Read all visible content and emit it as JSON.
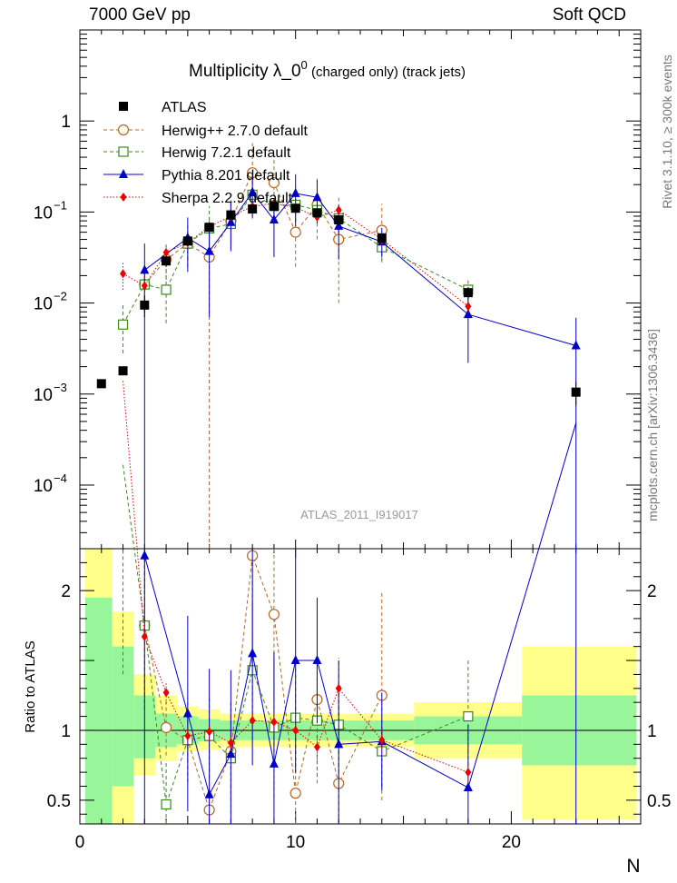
{
  "header": {
    "left": "7000 GeV pp",
    "right": "Soft QCD"
  },
  "side_labels": {
    "rivet": "Rivet 3.1.10, ≥ 300k events",
    "mcplots": "mcplots.cern.ch [arXiv:1306.3436]"
  },
  "chart_data": {
    "type": "scatter",
    "title_main": "Multiplicity  λ_0",
    "title_sup": "0",
    "title_suffix": " (charged only) (track jets)",
    "analysis_label": "ATLAS_2011_I919017",
    "xlabel": "N",
    "ylabel_ratio": "Ratio to ATLAS",
    "xlim": [
      0,
      26
    ],
    "ylim": [
      2e-05,
      10
    ],
    "y_scale": "log",
    "ratio_ylim": [
      0.33,
      2.3
    ],
    "x_ticks": [
      "0",
      "10",
      "20"
    ],
    "y_ticks_main": [
      {
        "v": 1,
        "label": "1"
      },
      {
        "v": 0.1,
        "label": "10",
        "sup": "−1"
      },
      {
        "v": 0.01,
        "label": "10",
        "sup": "−2"
      },
      {
        "v": 0.001,
        "label": "10",
        "sup": "−3"
      },
      {
        "v": 0.0001,
        "label": "10",
        "sup": "−4"
      }
    ],
    "y_ticks_ratio": [
      "0.5",
      "1",
      "2"
    ],
    "legend_position": "top-left",
    "data_bands": [
      {
        "x0": 0.25,
        "x1": 1.5,
        "g": [
          0.3,
          1.95
        ],
        "y": [
          0.2,
          2.3
        ]
      },
      {
        "x0": 1.5,
        "x1": 2.5,
        "g": [
          0.6,
          1.6
        ],
        "y": [
          0.3,
          1.85
        ]
      },
      {
        "x0": 2.5,
        "x1": 3.5,
        "g": [
          0.8,
          1.25
        ],
        "y": [
          0.68,
          1.4
        ]
      },
      {
        "x0": 3.5,
        "x1": 4.5,
        "g": [
          0.88,
          1.12
        ],
        "y": [
          0.78,
          1.25
        ]
      },
      {
        "x0": 4.5,
        "x1": 5.5,
        "g": [
          0.9,
          1.1
        ],
        "y": [
          0.85,
          1.17
        ]
      },
      {
        "x0": 5.5,
        "x1": 6.5,
        "g": [
          0.92,
          1.08
        ],
        "y": [
          0.86,
          1.15
        ]
      },
      {
        "x0": 6.5,
        "x1": 15.5,
        "g": [
          0.93,
          1.07
        ],
        "y": [
          0.88,
          1.12
        ]
      },
      {
        "x0": 15.5,
        "x1": 20.5,
        "g": [
          0.9,
          1.1
        ],
        "y": [
          0.8,
          1.2
        ]
      },
      {
        "x0": 20.5,
        "x1": 25.8,
        "g": [
          0.75,
          1.25
        ],
        "y": [
          0.36,
          1.6
        ]
      }
    ],
    "series": [
      {
        "name": "ATLAS",
        "color": "#000000",
        "marker": "square-filled",
        "x": [
          1,
          2,
          3,
          4,
          5,
          6,
          7,
          8,
          9,
          10,
          11,
          12,
          14,
          18,
          23
        ],
        "y": [
          0.0013,
          0.0018,
          0.0095,
          0.029,
          0.048,
          0.068,
          0.093,
          0.108,
          0.115,
          0.11,
          0.098,
          0.082,
          0.052,
          0.013,
          0.00105
        ]
      },
      {
        "name": "Herwig++ 2.7.0 default",
        "color": "#b8651f",
        "marker": "circle-open",
        "line": "dashed",
        "x": [
          3,
          4,
          5,
          6,
          7,
          8,
          9,
          10,
          11,
          12,
          14
        ],
        "y": [
          0.016,
          0.03,
          0.045,
          0.032,
          0.08,
          0.27,
          0.21,
          0.06,
          0.12,
          0.05,
          0.063
        ],
        "err_lo": [
          0.006,
          0.012,
          0.02,
          0.032,
          0.04,
          0.18,
          0.13,
          0.035,
          0.07,
          0.04,
          0.035
        ],
        "err_hi": [
          0.01,
          0.015,
          0.03,
          0.05,
          0.06,
          0.3,
          0.2,
          0.08,
          0.12,
          0.1,
          0.06
        ],
        "ratio": [
          1.75,
          1.02,
          0.93,
          0.43,
          0.85,
          2.25,
          1.83,
          0.55,
          1.22,
          0.62,
          1.25
        ],
        "ratio_err": [
          0.5,
          0.2,
          0.15,
          0.6,
          0.35,
          0.8,
          0.6,
          0.45,
          0.6,
          0.9,
          0.75
        ]
      },
      {
        "name": "Herwig 7.2.1 default",
        "color": "#3a8a1f",
        "marker": "square-open",
        "line": "dashed",
        "x": [
          2,
          3,
          4,
          5,
          6,
          7,
          8,
          9,
          10,
          11,
          12,
          14,
          18
        ],
        "y": [
          0.0058,
          0.016,
          0.014,
          0.045,
          0.066,
          0.074,
          0.155,
          0.118,
          0.12,
          0.105,
          0.085,
          0.041,
          0.014
        ],
        "err_lo": [
          0.003,
          0.008,
          0.008,
          0.015,
          0.03,
          0.03,
          0.05,
          0.04,
          0.04,
          0.03,
          0.025,
          0.012,
          0.004
        ],
        "err_hi": [
          0.004,
          0.01,
          0.01,
          0.02,
          0.05,
          0.05,
          0.07,
          0.06,
          0.06,
          0.04,
          0.03,
          0.015,
          0.005
        ],
        "ratio": [
          2.9,
          1.75,
          0.47,
          0.93,
          0.96,
          0.8,
          1.43,
          1.02,
          1.09,
          1.07,
          1.04,
          0.85,
          1.1
        ],
        "ratio_err": [
          1.5,
          0.6,
          0.3,
          0.3,
          0.3,
          0.4,
          0.5,
          0.5,
          0.4,
          0.4,
          0.3,
          0.25,
          0.4
        ]
      },
      {
        "name": "Pythia 8.201 default",
        "color": "#0000cc",
        "marker": "triangle-filled",
        "line": "solid",
        "x": [
          3,
          5,
          6,
          7,
          8,
          9,
          10,
          11,
          12,
          14,
          18,
          23
        ],
        "y": [
          0.023,
          0.052,
          0.037,
          0.077,
          0.165,
          0.082,
          0.16,
          0.145,
          0.07,
          0.047,
          0.0075,
          0.0034
        ],
        "err_lo": [
          0.023,
          0.03,
          0.03,
          0.04,
          0.08,
          0.05,
          0.09,
          0.07,
          0.04,
          0.015,
          0.0053,
          0.0034
        ],
        "err_hi": [
          0.022,
          0.035,
          0.04,
          0.05,
          0.09,
          0.06,
          0.1,
          0.08,
          0.05,
          0.02,
          0.0065,
          0.0035
        ],
        "ratio": [
          2.25,
          1.12,
          0.54,
          0.83,
          1.55,
          0.76,
          1.5,
          1.5,
          0.9,
          0.92,
          0.59,
          3.2
        ],
        "ratio_err": [
          2.25,
          0.7,
          0.9,
          0.6,
          0.8,
          0.8,
          0.8,
          0.45,
          0.6,
          0.35,
          0.45,
          3.2
        ]
      },
      {
        "name": "Sherpa 2.2.9 default",
        "color": "#ee0000",
        "marker": "diamond-filled",
        "line": "dotted",
        "x": [
          2,
          3,
          4,
          5,
          6,
          7,
          8,
          9,
          10,
          11,
          12,
          14,
          18
        ],
        "y": [
          0.021,
          0.0155,
          0.036,
          0.046,
          0.069,
          0.09,
          0.115,
          0.125,
          0.112,
          0.088,
          0.105,
          0.05,
          0.0092
        ],
        "err_lo": [
          0.007,
          0.004,
          0.006,
          0.006,
          0.008,
          0.009,
          0.01,
          0.012,
          0.01,
          0.01,
          0.012,
          0.006,
          0.0015
        ],
        "err_hi": [
          0.007,
          0.004,
          0.006,
          0.006,
          0.008,
          0.009,
          0.01,
          0.012,
          0.01,
          0.01,
          0.012,
          0.006,
          0.0015
        ],
        "ratio": [
          3.5,
          1.67,
          1.27,
          0.96,
          0.99,
          0.91,
          1.07,
          1.06,
          1.0,
          0.88,
          1.3,
          0.93,
          0.7
        ],
        "ratio_err": [
          0.8,
          0.15,
          0.08,
          0.06,
          0.06,
          0.06,
          0.07,
          0.08,
          0.08,
          0.09,
          0.11,
          0.08,
          0.08
        ]
      }
    ],
    "atlas_err": [
      8e-05,
      0.00015,
      0.0025,
      0.004,
      0.005,
      0.007,
      0.008,
      0.008,
      0.008,
      0.008,
      0.008,
      0.007,
      0.006,
      0.002,
      0.0003
    ]
  }
}
